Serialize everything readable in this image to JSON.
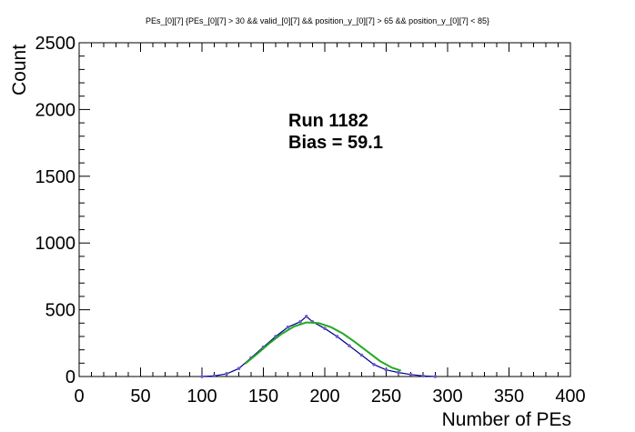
{
  "chart_data": {
    "type": "histogram",
    "title": "PEs_[0][7] {PEs_[0][7] > 30 && valid_[0][7] && position_y_[0][7] > 65 && position_y_[0][7] < 85}",
    "xlabel": "Number of PEs",
    "ylabel": "Count",
    "xlim": [
      0,
      400
    ],
    "ylim": [
      0,
      2500
    ],
    "x_ticks": [
      0,
      50,
      100,
      150,
      200,
      250,
      300,
      350,
      400
    ],
    "y_ticks": [
      0,
      500,
      1000,
      1500,
      2000,
      2500
    ],
    "annotations": [
      "Run 1182",
      "Bias = 59.1"
    ],
    "grid": false,
    "series": [
      {
        "kind": "histogram",
        "color": "#00008b",
        "x": [
          100,
          110,
          120,
          130,
          140,
          150,
          160,
          170,
          180,
          185,
          190,
          200,
          210,
          220,
          230,
          240,
          250,
          260,
          270,
          280,
          290
        ],
        "values": [
          0,
          5,
          20,
          60,
          140,
          220,
          300,
          370,
          410,
          450,
          410,
          360,
          300,
          230,
          160,
          90,
          50,
          30,
          15,
          5,
          0
        ]
      },
      {
        "kind": "fit",
        "color": "#22aa22",
        "x": [
          135,
          145,
          155,
          165,
          175,
          185,
          195,
          205,
          215,
          225,
          235,
          245,
          255,
          262
        ],
        "values": [
          95,
          170,
          250,
          320,
          375,
          405,
          400,
          370,
          320,
          255,
          185,
          115,
          65,
          45
        ]
      }
    ]
  }
}
